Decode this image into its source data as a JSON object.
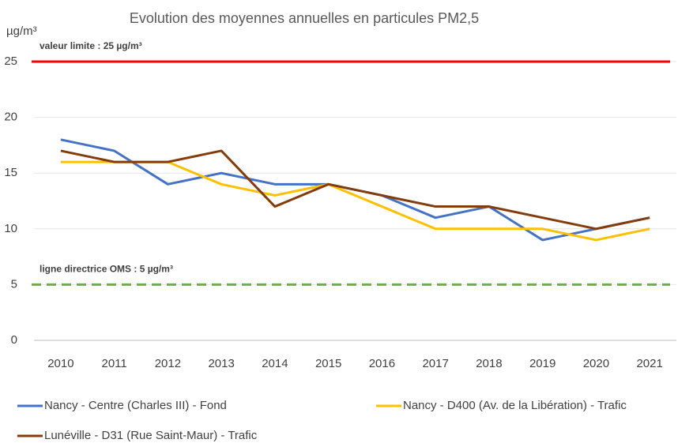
{
  "chart_data": {
    "type": "line",
    "title": "Evolution des moyennes annuelles en particules PM2,5",
    "y_label": "µg/m³",
    "categories": [
      "2010",
      "2011",
      "2012",
      "2013",
      "2014",
      "2015",
      "2016",
      "2017",
      "2018",
      "2019",
      "2020",
      "2021"
    ],
    "series": [
      {
        "name": "Nancy  - Centre (Charles III) - Fond",
        "color": "#4472c4",
        "values": [
          18,
          17,
          14,
          15,
          14,
          14,
          13,
          11,
          12,
          9,
          10,
          11
        ]
      },
      {
        "name": "Nancy - D400 (Av. de la Libération) - Trafic",
        "color": "#ffc000",
        "values": [
          16,
          16,
          16,
          14,
          13,
          14,
          12,
          10,
          10,
          10,
          9,
          10
        ]
      },
      {
        "name": "Lunéville - D31 (Rue Saint-Maur) - Trafic",
        "color": "#843c0c",
        "values": [
          17,
          16,
          16,
          17,
          12,
          14,
          13,
          12,
          12,
          11,
          10,
          11
        ]
      }
    ],
    "reference_lines": [
      {
        "label": "valeur limite : 25 µg/m³",
        "value": 25,
        "color": "#ff0000",
        "dashed": false
      },
      {
        "label": "ligne directrice OMS : 5 µg/m³",
        "value": 5,
        "color": "#70ad47",
        "dashed": true
      }
    ],
    "ylim": [
      0,
      25
    ],
    "yticks": [
      0,
      5,
      10,
      15,
      20,
      25
    ],
    "grid": true,
    "legend": "bottom"
  }
}
